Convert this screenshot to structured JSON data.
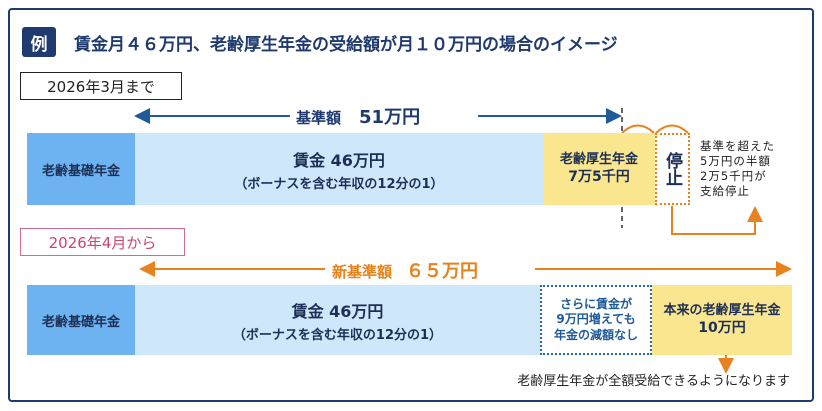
{
  "header": {
    "badge": "例",
    "title": "賃金月４６万円、老齢厚生年金の受給額が月１０万円の場合のイメージ"
  },
  "periods": [
    {
      "label": "2026年3月まで",
      "limit_name": "基準額",
      "limit_amount": "51万円",
      "basic_pension": "老齢基礎年金",
      "wage_title": "賃金 46万円",
      "wage_note": "（ボーナスを含む年収の12分の1）",
      "employee_pension_title": "老齢厚生年金",
      "employee_pension_amount": "7万5千円",
      "stop": "停止",
      "stop_note": [
        "基準を超えた",
        "5万円の半額",
        "2万5千円が",
        "支給停止"
      ]
    },
    {
      "label": "2026年4月から",
      "limit_name": "新基準額",
      "limit_amount": "６５万円",
      "basic_pension": "老齢基礎年金",
      "wage_title": "賃金 46万円",
      "wage_note": "（ボーナスを含む年収の12分の1）",
      "no_reduction": [
        "さらに賃金が",
        "9万円増えても",
        "年金の減額なし"
      ],
      "employee_pension_title": "本来の老齢厚生年金",
      "employee_pension_amount": "10万円",
      "footnote": "老齢厚生年金が全額受給できるようになります"
    }
  ]
}
